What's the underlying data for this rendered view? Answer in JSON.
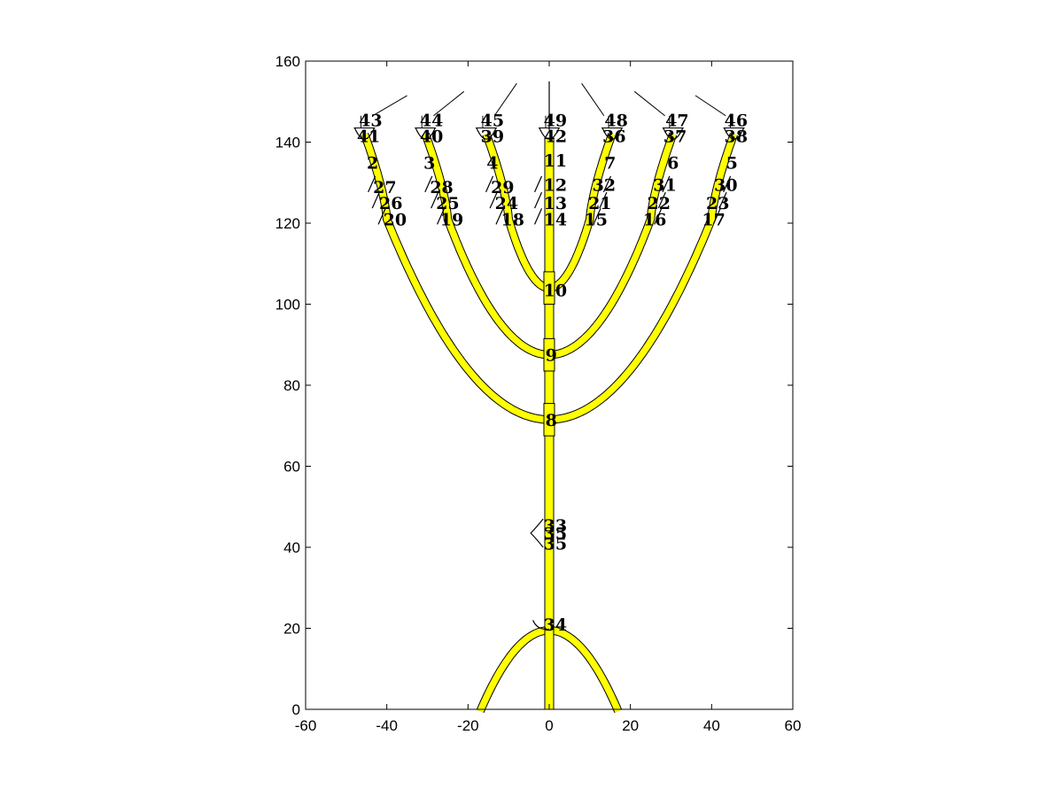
{
  "chart_data": {
    "type": "diagram",
    "xlim": [
      -60,
      60
    ],
    "ylim": [
      0,
      160
    ],
    "xticks": [
      "-60",
      "-40",
      "-20",
      "0",
      "20",
      "40",
      "60"
    ],
    "yticks": [
      "0",
      "20",
      "40",
      "60",
      "80",
      "100",
      "120",
      "140",
      "160"
    ],
    "xtick_values": [
      -60,
      -40,
      -20,
      0,
      20,
      40,
      60
    ],
    "ytick_values": [
      0,
      20,
      40,
      60,
      80,
      100,
      120,
      140,
      160
    ],
    "branch_color": "#ffff00",
    "outline_color": "#000000",
    "stem": {
      "x": 0,
      "y_bottom": 0,
      "y_top": 155
    },
    "base_arch": {
      "apex_y": 19.5,
      "half_width": 16.5
    },
    "branch_pairs": [
      {
        "join_y": 104,
        "top_x": 10,
        "top_y": 133
      },
      {
        "join_y": 87.5,
        "top_x": 25,
        "top_y": 133
      },
      {
        "join_y": 71.5,
        "top_x": 40,
        "top_y": 133
      }
    ],
    "cup_tops": [
      -45.5,
      -30.5,
      -15.5,
      0,
      15.5,
      30.5,
      45.5
    ],
    "cup_y": 143,
    "labels": [
      {
        "text": "43",
        "x": -44,
        "y": 145.5
      },
      {
        "text": "44",
        "x": -29,
        "y": 145.5
      },
      {
        "text": "45",
        "x": -14,
        "y": 145.5
      },
      {
        "text": "49",
        "x": 1.5,
        "y": 145.5
      },
      {
        "text": "48",
        "x": 16.5,
        "y": 145.5
      },
      {
        "text": "47",
        "x": 31.5,
        "y": 145.5
      },
      {
        "text": "46",
        "x": 46,
        "y": 145.5
      },
      {
        "text": "41",
        "x": -44.5,
        "y": 141.5
      },
      {
        "text": "40",
        "x": -29,
        "y": 141.5
      },
      {
        "text": "39",
        "x": -14,
        "y": 141.5
      },
      {
        "text": "42",
        "x": 1.5,
        "y": 141.5
      },
      {
        "text": "36",
        "x": 16,
        "y": 141.5
      },
      {
        "text": "37",
        "x": 31,
        "y": 141.5
      },
      {
        "text": "38",
        "x": 46,
        "y": 141.5
      },
      {
        "text": "2",
        "x": -43.5,
        "y": 135
      },
      {
        "text": "3",
        "x": -29.5,
        "y": 135
      },
      {
        "text": "4",
        "x": -14,
        "y": 135
      },
      {
        "text": "11",
        "x": 1.5,
        "y": 135.5
      },
      {
        "text": "7",
        "x": 15,
        "y": 135
      },
      {
        "text": "6",
        "x": 30.5,
        "y": 135
      },
      {
        "text": "5",
        "x": 45,
        "y": 135
      },
      {
        "text": "27",
        "x": -40.5,
        "y": 129
      },
      {
        "text": "28",
        "x": -26.5,
        "y": 129
      },
      {
        "text": "29",
        "x": -11.5,
        "y": 129
      },
      {
        "text": "12",
        "x": 1.5,
        "y": 129.5
      },
      {
        "text": "32",
        "x": 13.5,
        "y": 129.5
      },
      {
        "text": "31",
        "x": 28.5,
        "y": 129.5
      },
      {
        "text": "30",
        "x": 43.5,
        "y": 129.5
      },
      {
        "text": "26",
        "x": -39,
        "y": 125
      },
      {
        "text": "25",
        "x": -25,
        "y": 125
      },
      {
        "text": "24",
        "x": -10.5,
        "y": 125
      },
      {
        "text": "13",
        "x": 1.5,
        "y": 125
      },
      {
        "text": "21",
        "x": 12.5,
        "y": 125
      },
      {
        "text": "22",
        "x": 27,
        "y": 125
      },
      {
        "text": "23",
        "x": 41.5,
        "y": 125
      },
      {
        "text": "20",
        "x": -38,
        "y": 121
      },
      {
        "text": "19",
        "x": -24,
        "y": 121
      },
      {
        "text": "18",
        "x": -9,
        "y": 121
      },
      {
        "text": "14",
        "x": 1.5,
        "y": 121
      },
      {
        "text": "15",
        "x": 11.5,
        "y": 121
      },
      {
        "text": "16",
        "x": 26,
        "y": 121
      },
      {
        "text": "17",
        "x": 40.5,
        "y": 121
      },
      {
        "text": "10",
        "x": 1.5,
        "y": 103.5
      },
      {
        "text": "9",
        "x": 0.5,
        "y": 87.5
      },
      {
        "text": "8",
        "x": 0.5,
        "y": 71.5
      },
      {
        "text": "33",
        "x": 1.5,
        "y": 45.5
      },
      {
        "text": "35",
        "x": 1.5,
        "y": 43.5
      },
      {
        "text": "35",
        "x": 1.5,
        "y": 41
      },
      {
        "text": "34",
        "x": 1.5,
        "y": 21
      }
    ]
  }
}
